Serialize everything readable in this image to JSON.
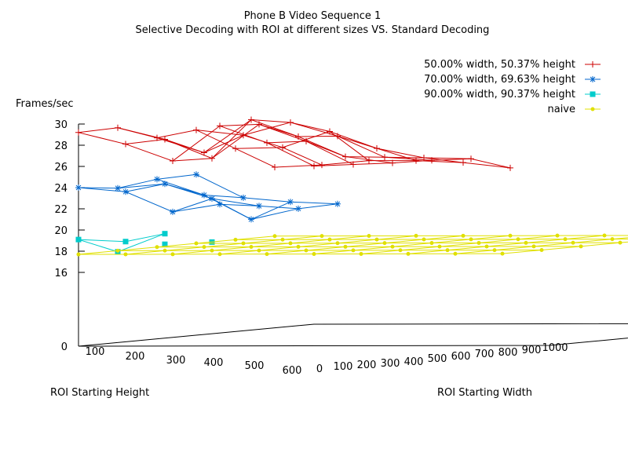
{
  "chart_data": {
    "type": "line",
    "projection": "3d-surface-mesh",
    "title": "Phone B Video Sequence 1",
    "subtitle": "Selective Decoding with ROI at different sizes VS. Standard Decoding",
    "zlabel": "Frames/sec",
    "xlabel": "ROI Starting Height",
    "ylabel": "ROI Starting Width",
    "z_ticks": [
      "0",
      "16",
      "18",
      "20",
      "22",
      "24",
      "26",
      "28",
      "30"
    ],
    "x_ticks": [
      "100",
      "200",
      "300",
      "400",
      "500",
      "600"
    ],
    "y_ticks": [
      "0",
      "100",
      "200",
      "300",
      "400",
      "500",
      "600",
      "700",
      "800",
      "900",
      "1000"
    ],
    "xlim": [
      0,
      600
    ],
    "ylim": [
      0,
      1000
    ],
    "zlim": [
      0,
      30
    ],
    "grid": false,
    "legend_position": "top-right",
    "series": [
      {
        "name": "50.00% width, 50.37% height",
        "color": "#cc0000",
        "marker": "plus",
        "grid_x": [
          0,
          100,
          200,
          300,
          400,
          500
        ],
        "grid_y": [
          0,
          100,
          200,
          300,
          400,
          500
        ],
        "z": [
          [
            29.2,
            28.1,
            26.5,
            29.8,
            28.2,
            26.0
          ],
          [
            29.3,
            28.2,
            26.4,
            29.6,
            28.0,
            25.8
          ],
          [
            28.0,
            26.6,
            29.7,
            28.1,
            26.2,
            25.6
          ],
          [
            28.4,
            27.9,
            29.1,
            27.8,
            25.8,
            25.5
          ],
          [
            26.3,
            26.4,
            27.9,
            26.3,
            25.4,
            25.3
          ],
          [
            24.2,
            24.4,
            24.8,
            24.8,
            24.6,
            24.1
          ]
        ]
      },
      {
        "name": "70.00% width, 69.63% height",
        "color": "#0066cc",
        "marker": "star",
        "grid_x": [
          0,
          100,
          200,
          300
        ],
        "grid_y": [
          0,
          100,
          200,
          300
        ],
        "z": [
          [
            24.0,
            23.6,
            21.7,
            22.4
          ],
          [
            23.6,
            24.0,
            22.6,
            21.9
          ],
          [
            24.1,
            22.6,
            20.3,
            21.3
          ],
          [
            24.2,
            22.0,
            21.6,
            21.4
          ]
        ]
      },
      {
        "name": "90.00% width, 90.37% height",
        "color": "#00cccc",
        "marker": "filled-square",
        "grid_x": [
          0,
          100
        ],
        "grid_y": [
          0,
          100
        ],
        "z": [
          [
            19.1,
            18.9
          ],
          [
            17.6,
            19.3
          ]
        ],
        "extra_points": [
          {
            "x": 100,
            "y": 100,
            "z": 18.3
          },
          {
            "x": 100,
            "y": 200,
            "z": 18.5
          }
        ]
      },
      {
        "name": "naive",
        "color": "#e0e000",
        "marker": "filled-circle",
        "grid_x": [
          0,
          100,
          200,
          300,
          400,
          500
        ],
        "grid_y": [
          0,
          100,
          200,
          300,
          400,
          500,
          600,
          700,
          800,
          900
        ],
        "z_constant": 17.7
      }
    ]
  }
}
